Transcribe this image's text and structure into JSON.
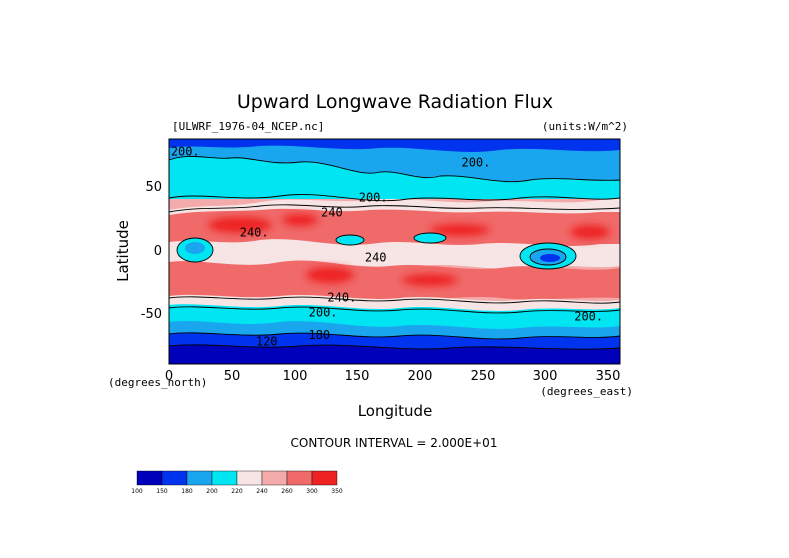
{
  "chart_data": {
    "type": "heatmap",
    "title": "Upward Longwave Radiation Flux",
    "file_label": "[ULWRF_1976-04_NCEP.nc]",
    "units_label": "(units:W/m^2)",
    "xlabel": "Longitude",
    "ylabel": "Latitude",
    "x_units": "(degrees_east)",
    "y_units": "(degrees_north)",
    "xlim": [
      0,
      360
    ],
    "ylim": [
      -90,
      90
    ],
    "x_ticks": [
      "0",
      "50",
      "100",
      "150",
      "200",
      "250",
      "300",
      "350"
    ],
    "y_ticks": [
      "50",
      "0",
      "-50"
    ],
    "contour_interval_label": "CONTOUR INTERVAL = 2.000E+01",
    "colorbar": {
      "labels": [
        "100",
        "150",
        "180",
        "200",
        "220",
        "240",
        "260",
        "300",
        "350"
      ],
      "colors": [
        "#0000bb",
        "#0033ee",
        "#1aa6ee",
        "#00e5f2",
        "#f7e4e4",
        "#f3aaaa",
        "#f06a6a",
        "#ee2222"
      ]
    },
    "contour_labels": [
      {
        "text": "200.",
        "lon": 13,
        "lat": 77
      },
      {
        "text": "200.",
        "lon": 245,
        "lat": 68
      },
      {
        "text": "200.",
        "lon": 163,
        "lat": 40
      },
      {
        "text": "240",
        "lon": 130,
        "lat": 28
      },
      {
        "text": "240.",
        "lon": 68,
        "lat": 12
      },
      {
        "text": "240",
        "lon": 165,
        "lat": -8
      },
      {
        "text": "240.",
        "lon": 138,
        "lat": -40
      },
      {
        "text": "200.",
        "lon": 123,
        "lat": -52
      },
      {
        "text": "200.",
        "lon": 335,
        "lat": -55
      },
      {
        "text": "120",
        "lon": 78,
        "lat": -75
      },
      {
        "text": "180",
        "lon": 120,
        "lat": -70
      }
    ]
  }
}
